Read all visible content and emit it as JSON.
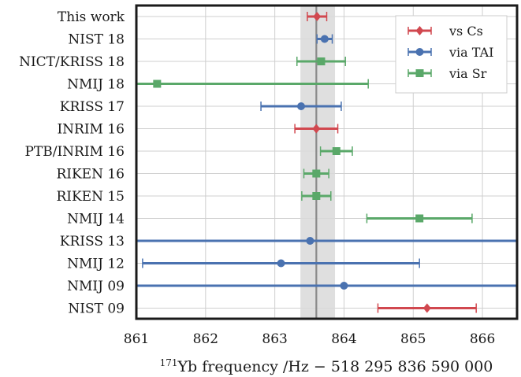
{
  "chart_data": {
    "type": "scatter",
    "subtype": "error-bar",
    "xlim": [
      861,
      866.5
    ],
    "x_ticks": [
      861,
      862,
      863,
      864,
      865,
      866
    ],
    "xlabel_sup": "171",
    "xlabel": "Yb frequency /Hz − 518 295 836 590 000",
    "grid": true,
    "legend_position": "top-right",
    "reference_line": 863.6,
    "reference_band": [
      863.37,
      863.87
    ],
    "colors": {
      "vs_cs": "#d1484f",
      "via_tai": "#4a72b0",
      "via_sr": "#5aa869"
    },
    "series": [
      {
        "key": "vs_cs",
        "name": "vs Cs",
        "marker": "diamond"
      },
      {
        "key": "via_tai",
        "name": "via TAI",
        "marker": "circle"
      },
      {
        "key": "via_sr",
        "name": "via Sr",
        "marker": "square"
      }
    ],
    "measurements": [
      {
        "label": "This work",
        "value": 863.61,
        "err": 0.14,
        "series": "vs_cs"
      },
      {
        "label": "NIST 18",
        "value": 863.72,
        "err": 0.11,
        "series": "via_tai"
      },
      {
        "label": "NICT/KRISS 18",
        "value": 863.67,
        "err": 0.35,
        "series": "via_sr"
      },
      {
        "label": "NMIJ 18",
        "value": 861.3,
        "err": 3.05,
        "series": "via_sr"
      },
      {
        "label": "KRISS 17",
        "value": 863.38,
        "err": 0.58,
        "series": "via_tai"
      },
      {
        "label": "INRIM 16",
        "value": 863.6,
        "err": 0.31,
        "series": "vs_cs"
      },
      {
        "label": "PTB/INRIM 16",
        "value": 863.89,
        "err": 0.23,
        "series": "via_sr"
      },
      {
        "label": "RIKEN 16",
        "value": 863.6,
        "err": 0.18,
        "series": "via_sr"
      },
      {
        "label": "RIKEN 15",
        "value": 863.6,
        "err": 0.21,
        "series": "via_sr"
      },
      {
        "label": "NMIJ 14",
        "value": 865.09,
        "err": 0.76,
        "series": "via_sr"
      },
      {
        "label": "KRISS 13",
        "value": 863.51,
        "err": 4.5,
        "series": "via_tai"
      },
      {
        "label": "NMIJ 12",
        "value": 863.09,
        "err": 2.0,
        "series": "via_tai"
      },
      {
        "label": "NMIJ 09",
        "value": 864.0,
        "err": 4.5,
        "series": "via_tai"
      },
      {
        "label": "NIST 09",
        "value": 865.2,
        "err": 0.71,
        "series": "vs_cs"
      }
    ]
  }
}
